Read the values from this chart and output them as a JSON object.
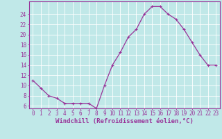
{
  "x": [
    0,
    1,
    2,
    3,
    4,
    5,
    6,
    7,
    8,
    9,
    10,
    11,
    12,
    13,
    14,
    15,
    16,
    17,
    18,
    19,
    20,
    21,
    22,
    23
  ],
  "y": [
    11,
    9.5,
    8,
    7.5,
    6.5,
    6.5,
    6.5,
    6.5,
    5.5,
    10,
    14,
    16.5,
    19.5,
    21,
    24,
    25.5,
    25.5,
    24,
    23,
    21,
    18.5,
    16,
    14,
    14
  ],
  "line_color": "#993399",
  "marker": "+",
  "marker_size": 3,
  "marker_lw": 0.8,
  "bg_color": "#c0e8e8",
  "grid_color": "#ffffff",
  "xlabel": "Windchill (Refroidissement éolien,°C)",
  "xlabel_color": "#993399",
  "tick_color": "#993399",
  "ylim": [
    5.5,
    26.5
  ],
  "yticks": [
    6,
    8,
    10,
    12,
    14,
    16,
    18,
    20,
    22,
    24
  ],
  "xticks": [
    0,
    1,
    2,
    3,
    4,
    5,
    6,
    7,
    8,
    9,
    10,
    11,
    12,
    13,
    14,
    15,
    16,
    17,
    18,
    19,
    20,
    21,
    22,
    23
  ],
  "spine_color": "#993399",
  "tick_fontsize": 5.5,
  "xlabel_fontsize": 6.5,
  "line_width": 0.9
}
